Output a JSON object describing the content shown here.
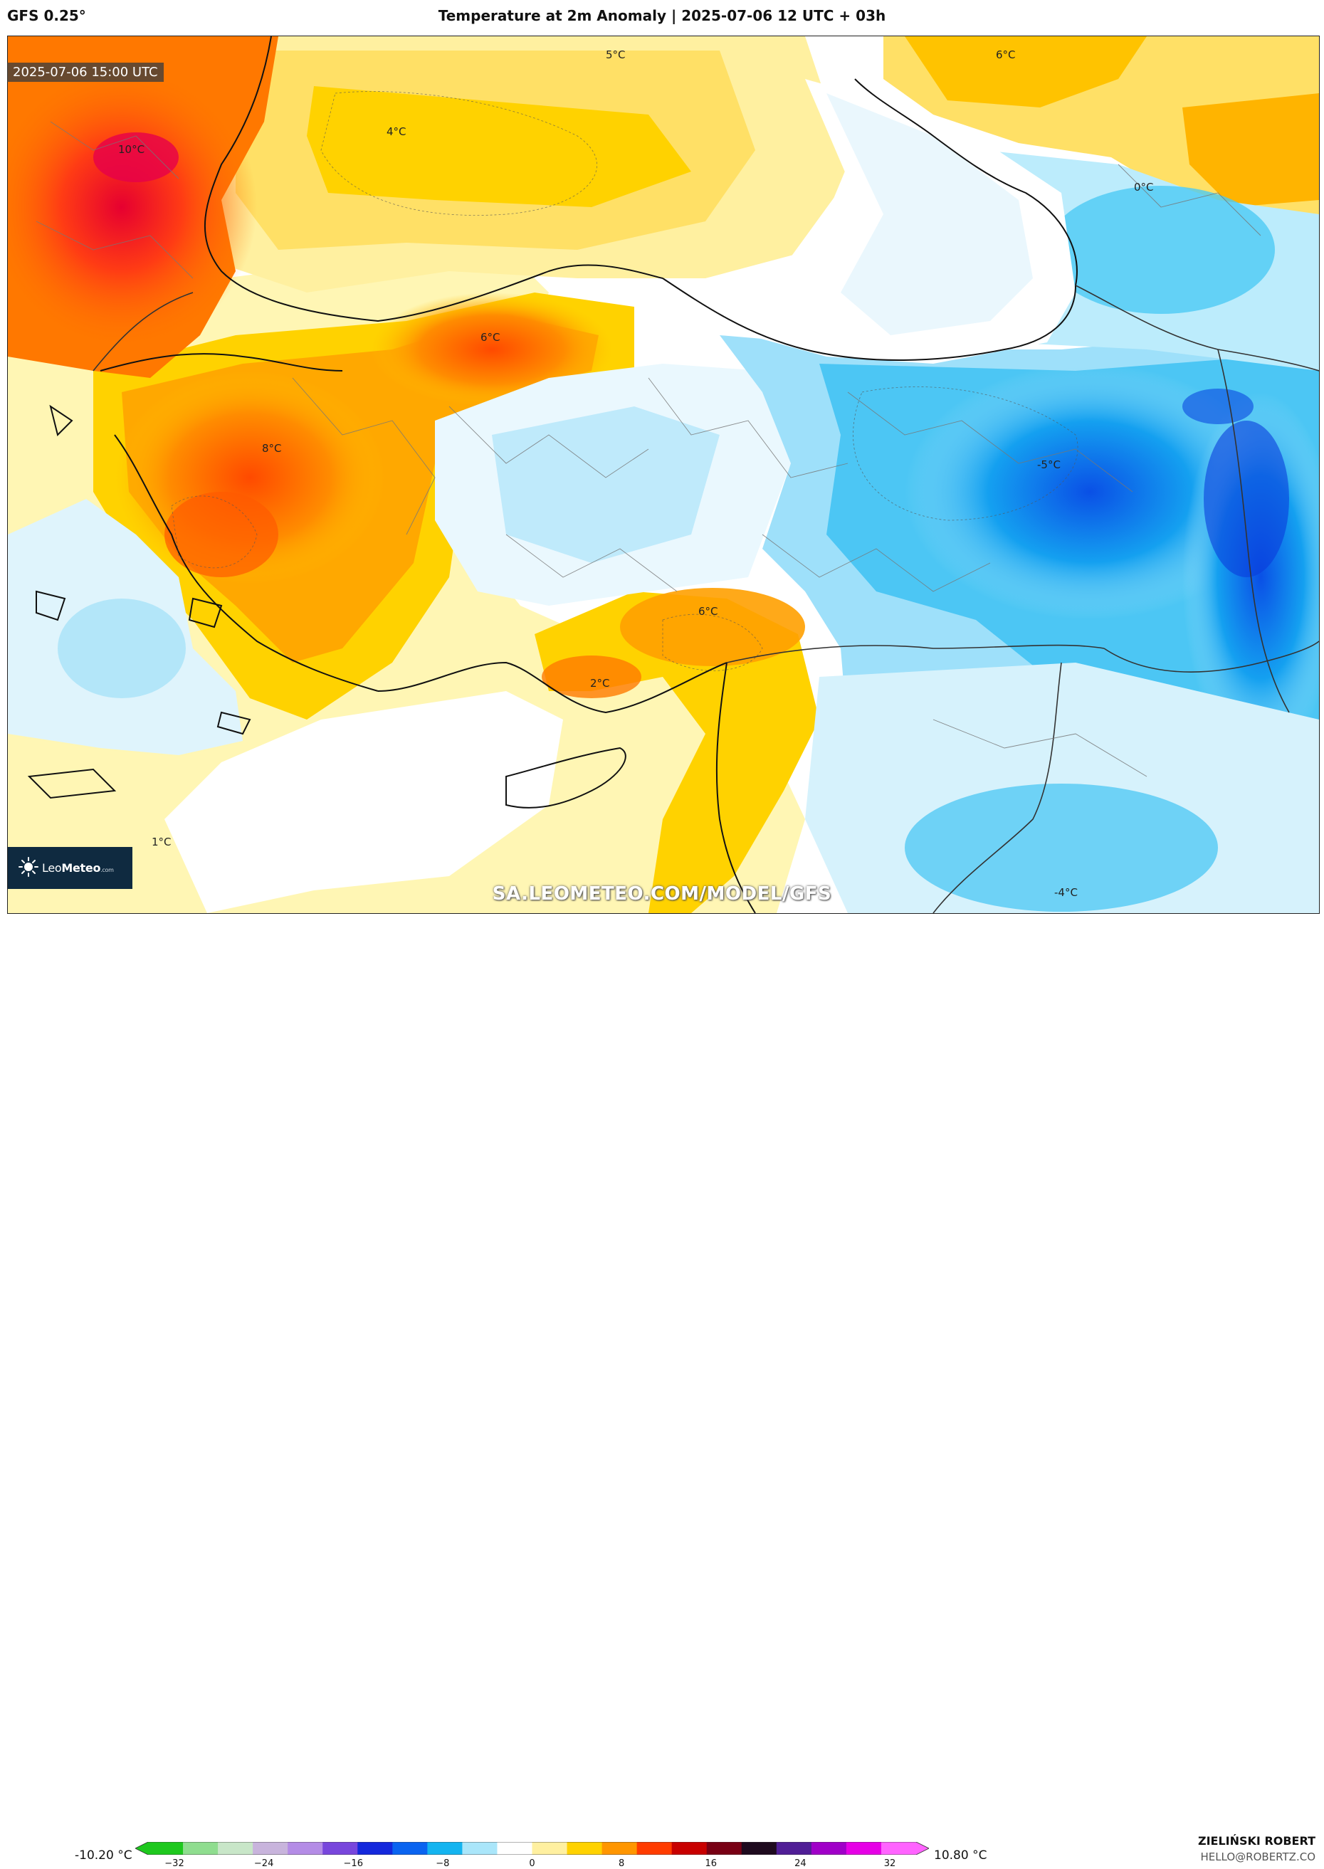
{
  "header": {
    "model": "GFS 0.25°",
    "title": "Temperature at 2m Anomaly | 2025-07-06 12 UTC + 03h"
  },
  "map": {
    "valid_time": "2025-07-06 15:00 UTC",
    "watermark": "SA.LEOMETEO.COM/MODEL/GFS",
    "labels": [
      "10°C",
      "4°C",
      "5°C",
      "6°C",
      "0°C",
      "6°C",
      "8°C",
      "-5°C",
      "6°C",
      "2°C",
      "1°C",
      "-4°C"
    ]
  },
  "logo": {
    "icon": "sun-icon",
    "text_a": "Leo",
    "text_b": "Meteo",
    "text_c": ".com"
  },
  "colorbar": {
    "min_label": "-10.20 °C",
    "max_label": "10.80 °C",
    "ticks": [
      "−32",
      "−24",
      "−16",
      "−8",
      "0",
      "8",
      "16",
      "24",
      "32"
    ],
    "colors": [
      "#1ec81e",
      "#8fdd8f",
      "#c8e6c8",
      "#c8b4dc",
      "#b48ce6",
      "#7846dc",
      "#1428dc",
      "#0a64f0",
      "#14b4f0",
      "#aae6fa",
      "#ffffff",
      "#fff0a0",
      "#ffd200",
      "#ff9600",
      "#ff3c00",
      "#c80000",
      "#780014",
      "#1e0a1e",
      "#501e96",
      "#a000c8",
      "#e600e6",
      "#ff64ff"
    ]
  },
  "author": {
    "name": "ZIELIŃSKI ROBERT",
    "email": "HELLO@ROBERTZ.CO"
  }
}
